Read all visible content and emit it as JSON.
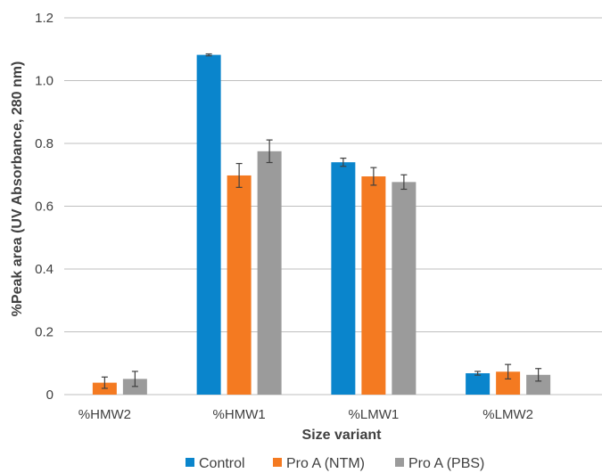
{
  "chart_data": {
    "type": "bar",
    "title": "",
    "xlabel": "Size variant",
    "ylabel": "%Peak area (UV Absorbance, 280 nm)",
    "ylim": [
      0,
      1.2
    ],
    "yticks": [
      0,
      0.2,
      0.4,
      0.6,
      0.8,
      1.0,
      1.2
    ],
    "ytick_labels": [
      "0",
      "0.2",
      "0.4",
      "0.6",
      "0.8",
      "1.0",
      "1.2"
    ],
    "categories": [
      "%HMW2",
      "%HMW1",
      "%LMW1",
      "%LMW2"
    ],
    "series": [
      {
        "name": "Control",
        "color": "#0a85cc",
        "values": [
          0,
          1.082,
          0.74,
          0.068
        ],
        "errors": [
          0,
          0.003,
          0.013,
          0.006
        ]
      },
      {
        "name": "Pro A (NTM)",
        "color": "#f47a21",
        "values": [
          0.038,
          0.698,
          0.695,
          0.073
        ],
        "errors": [
          0.018,
          0.038,
          0.028,
          0.023
        ]
      },
      {
        "name": "Pro A (PBS)",
        "color": "#9b9b9b",
        "values": [
          0.05,
          0.775,
          0.677,
          0.063
        ],
        "errors": [
          0.024,
          0.036,
          0.023,
          0.02
        ]
      }
    ],
    "grid": true,
    "legend_position": "bottom"
  }
}
